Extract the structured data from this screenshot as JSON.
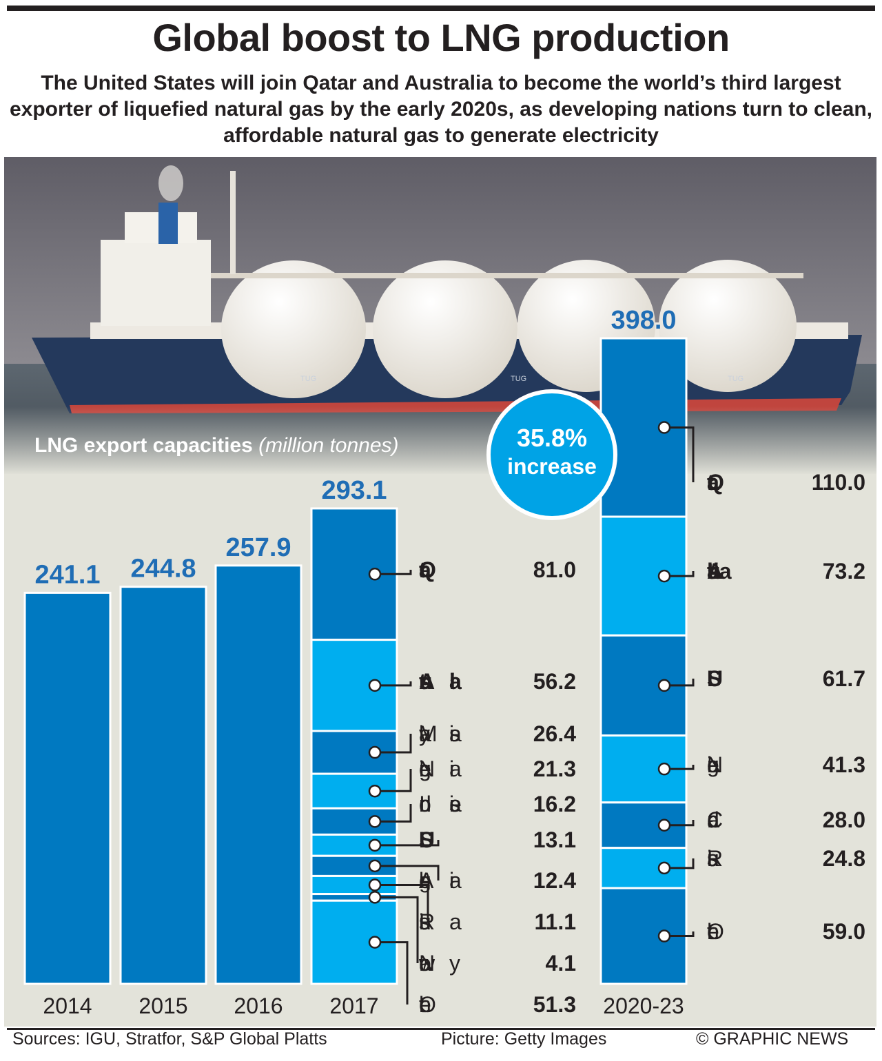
{
  "header": {
    "title": "Global boost to LNG production",
    "subtitle": "The United States will join Qatar and Australia to become the world’s third largest exporter of liquefied natural gas by the early 2020s, as developing nations turn to clean, affordable natural gas to generate electricity"
  },
  "photo": {
    "description": "LNG tanker ship with spherical cargo tanks at sea",
    "hull_text": "TUG"
  },
  "footer": {
    "sources": "Sources: IGU, Stratfor, S&P Global Platts",
    "credit": "Picture: Getty Images",
    "copyright": "© GRAPHIC NEWS"
  },
  "colors": {
    "bar_dark": "#0079c1",
    "bar_light": "#00aeef",
    "value_blue": "#1f6db5",
    "badge": "#00a3e6",
    "panel": "#e3e3da",
    "text": "#231f20"
  },
  "chart_data": {
    "type": "bar",
    "title": "LNG export capacities",
    "unit": "(million tonnes)",
    "categories": [
      "2014",
      "2015",
      "2016",
      "2017",
      "2020-23"
    ],
    "totals": [
      "241.1",
      "244.8",
      "257.9",
      "293.1",
      "398.0"
    ],
    "values": [
      241.1,
      244.8,
      257.9,
      293.1,
      398.0
    ],
    "ylim": [
      0,
      398
    ],
    "annotation": {
      "value": "35.8%",
      "label": "increase"
    },
    "breakdown_2017": [
      {
        "name": "Qatar",
        "value": "81.0",
        "v": 81.0,
        "bold": true
      },
      {
        "name": "Australia",
        "value": "56.2",
        "v": 56.2,
        "bold": true
      },
      {
        "name": "Malaysia",
        "value": "26.4",
        "v": 26.4,
        "bold": false
      },
      {
        "name": "Nigeria",
        "value": "21.3",
        "v": 21.3,
        "bold": false
      },
      {
        "name": "Indonesia",
        "value": "16.2",
        "v": 16.2,
        "bold": false
      },
      {
        "name": "U.S.",
        "value": "13.1",
        "v": 13.1,
        "bold": true
      },
      {
        "name": "Algeria",
        "value": "12.4",
        "v": 12.4,
        "bold": false
      },
      {
        "name": "Russia",
        "value": "11.1",
        "v": 11.1,
        "bold": false
      },
      {
        "name": "Norway",
        "value": "4.1",
        "v": 4.1,
        "bold": false
      },
      {
        "name": "Other",
        "value": "51.3",
        "v": 51.3,
        "bold": false
      }
    ],
    "breakdown_2020_23": [
      {
        "name": "Qatar",
        "value": "110.0",
        "v": 110.0,
        "bold": true
      },
      {
        "name": "Australia",
        "value": "73.2",
        "v": 73.2,
        "bold": true
      },
      {
        "name": "U.S.",
        "value": "61.7",
        "v": 61.7,
        "bold": true
      },
      {
        "name": "Nigeria",
        "value": "41.3",
        "v": 41.3,
        "bold": false
      },
      {
        "name": "Canada",
        "value": "28.0",
        "v": 28.0,
        "bold": false
      },
      {
        "name": "Russia",
        "value": "24.8",
        "v": 24.8,
        "bold": false
      },
      {
        "name": "Other",
        "value": "59.0",
        "v": 59.0,
        "bold": false
      }
    ]
  }
}
